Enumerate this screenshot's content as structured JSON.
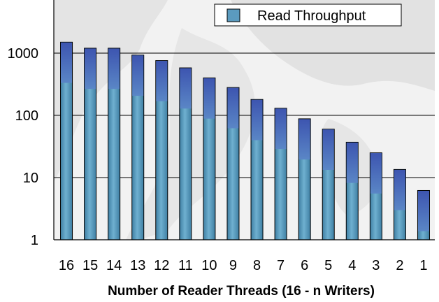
{
  "chart_data": {
    "type": "bar",
    "title": "",
    "xlabel": "Number of Reader Threads (16 - n Writers)",
    "ylabel": "",
    "yscale": "log",
    "ylim": [
      1,
      5000
    ],
    "yticks": [
      {
        "value": 1,
        "label": "1"
      },
      {
        "value": 10,
        "label": "10"
      },
      {
        "value": 100,
        "label": "100"
      },
      {
        "value": 1000,
        "label": "1000"
      }
    ],
    "grid": true,
    "legend": {
      "position": "top-right"
    },
    "categories": [
      "16",
      "15",
      "14",
      "13",
      "12",
      "11",
      "10",
      "9",
      "8",
      "7",
      "6",
      "5",
      "4",
      "3",
      "2",
      "1"
    ],
    "series": [
      {
        "name": "Read Throughput",
        "color": "#5b9bbf",
        "top_color": "#4f6fc0",
        "values": [
          1500,
          1200,
          1200,
          930,
          760,
          580,
          400,
          280,
          180,
          130,
          88,
          60,
          37,
          25,
          13.5,
          6.2
        ]
      }
    ]
  }
}
